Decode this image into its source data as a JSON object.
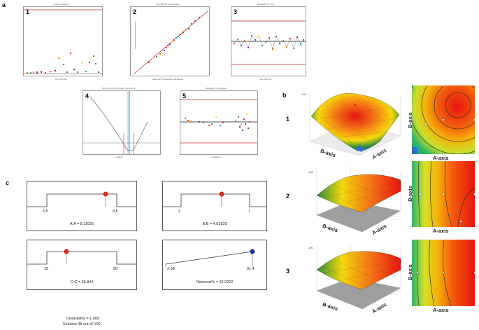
{
  "figure": {
    "panel_labels": {
      "a": "a",
      "b": "b",
      "c": "c"
    },
    "panel_a": {
      "plots": [
        {
          "number": "1",
          "title": "Cook's Distance",
          "xlabel": "Run Number",
          "ylabel": "Cook's Distance"
        },
        {
          "number": "2",
          "title": "Normal Plot of Residuals",
          "xlabel": "Externally Studentized Residuals",
          "ylabel": "Normal % Probability"
        },
        {
          "number": "3",
          "title": "Residuals vs. Run",
          "xlabel": "Run Number",
          "ylabel": "Externally Studentized Residuals"
        },
        {
          "number": "4",
          "title": "Box-Cox Plot for Power Transforms",
          "xlabel": "Lambda",
          "ylabel": "Ln(ResidualSS)"
        },
        {
          "number": "5",
          "title": "Residuals vs. Predicted",
          "xlabel": "Predicted",
          "ylabel": "Externally Studentized Residuals"
        }
      ]
    },
    "panel_b": {
      "rows": [
        {
          "number": "1",
          "axis_b": "B-axis",
          "axis_a": "A-axis",
          "contour_ylabel": "B-axis",
          "contour_xlabel": "A-axis"
        },
        {
          "number": "2",
          "axis_b": "B-axis",
          "axis_a": "A-axis",
          "contour_ylabel": "B-axis",
          "contour_xlabel": "A-axis"
        },
        {
          "number": "3",
          "axis_b": "B-axis",
          "axis_a": "A-axis",
          "contour_ylabel": "B-axis",
          "contour_xlabel": "A-axis"
        }
      ],
      "tick_100": "100",
      "colors": {
        "high": "#e8150f",
        "mid": "#f5d90a",
        "low": "#2a8a3a",
        "min": "#2a6fd6"
      }
    },
    "panel_c": {
      "ramps": [
        {
          "low": "6.5",
          "high": "8.5",
          "value_label": "A:A = 8.11625"
        },
        {
          "low": "2",
          "high": "7",
          "value_label": "B:B = 4.81625"
        },
        {
          "low": "10",
          "high": "80",
          "value_label": "C:C = 28.844"
        },
        {
          "low": "2.98",
          "high": "91.4",
          "value_label": "Removal% = 92.0222"
        }
      ],
      "desirability": "Desirability = 1.000",
      "solution": "Solution 38 out of 100",
      "colors": {
        "factor_point": "#e52a1c",
        "response_point": "#1a2fb8"
      }
    }
  }
}
